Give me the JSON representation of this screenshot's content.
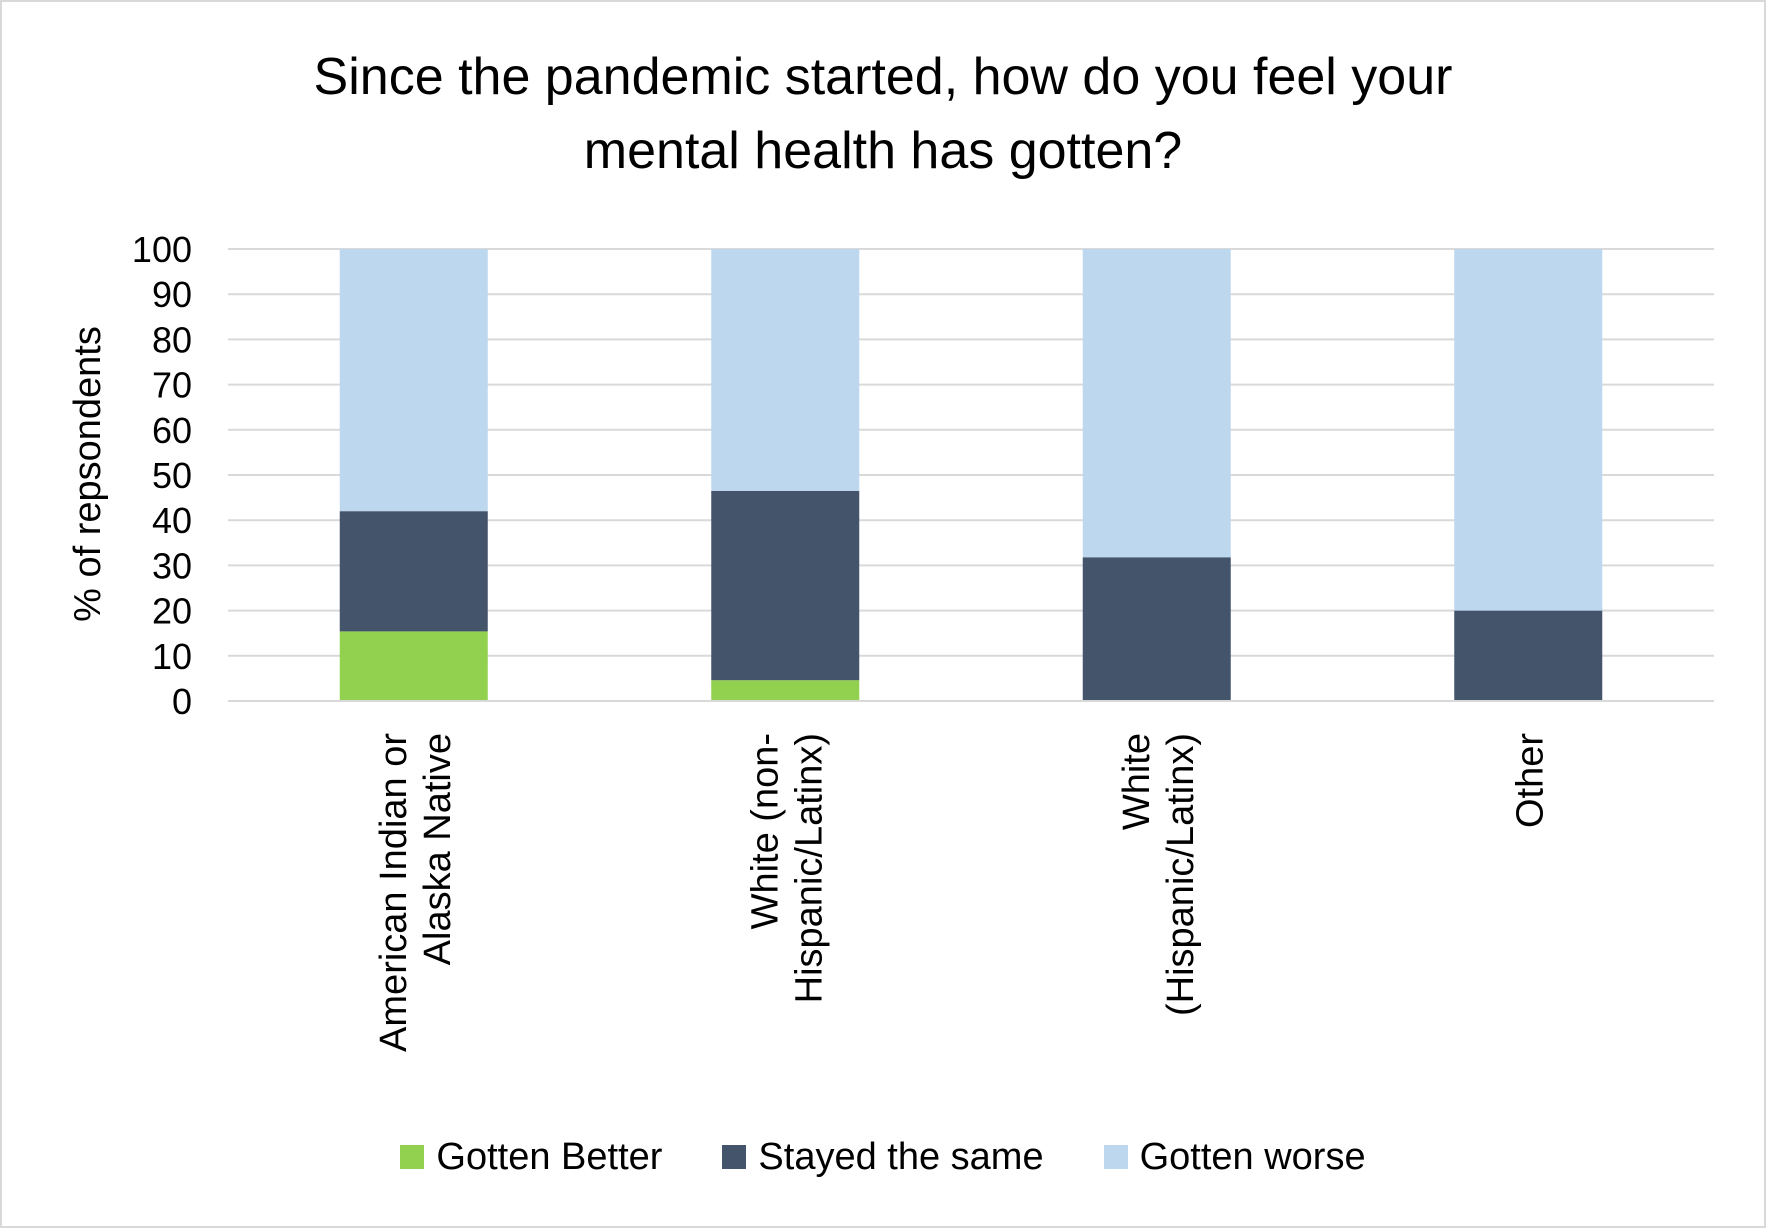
{
  "chart_data": {
    "type": "bar",
    "stacked": true,
    "title_lines": [
      "Since the pandemic started, how do you feel your",
      "mental health has gotten?"
    ],
    "ylabel": "% of repsondents",
    "xlabel": "",
    "ylim": [
      0,
      100
    ],
    "yticks": [
      0,
      10,
      20,
      30,
      40,
      50,
      60,
      70,
      80,
      90,
      100
    ],
    "grid": true,
    "legend_position": "bottom",
    "categories": [
      [
        "American Indian or",
        "Alaska Native"
      ],
      [
        "White (non-",
        "Hispanic/Latinx)"
      ],
      [
        "White",
        "(Hispanic/Latinx)"
      ],
      [
        "Other"
      ]
    ],
    "series": [
      {
        "name": "Gotten Better",
        "color": "#92d050",
        "values": [
          15.4,
          4.6,
          0,
          0
        ]
      },
      {
        "name": "Stayed the same",
        "color": "#44546a",
        "values": [
          26.6,
          41.9,
          31.8,
          20
        ]
      },
      {
        "name": "Gotten worse",
        "color": "#bdd7ee",
        "values": [
          58,
          53.5,
          68.2,
          80
        ]
      }
    ]
  }
}
